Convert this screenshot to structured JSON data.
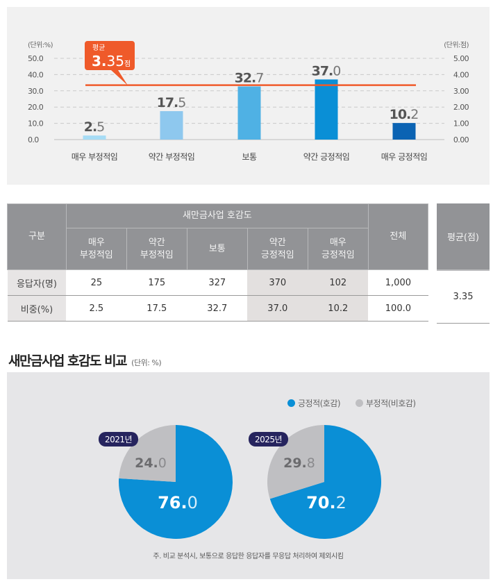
{
  "chart_data": [
    {
      "type": "bar",
      "title": "",
      "categories": [
        "매우 부정적임",
        "약간 부정적임",
        "보통",
        "약간 긍정적임",
        "매우 긍정적임"
      ],
      "values": [
        2.5,
        17.5,
        32.7,
        37.0,
        10.2
      ],
      "value_labels": [
        {
          "int": "2.",
          "dec": "5"
        },
        {
          "int": "17.",
          "dec": "5"
        },
        {
          "int": "32.",
          "dec": "7"
        },
        {
          "int": "37.",
          "dec": "0"
        },
        {
          "int": "10.",
          "dec": "2"
        }
      ],
      "bar_colors": [
        "#a6dcf5",
        "#8ec8ee",
        "#4fb1e4",
        "#0a8fd6",
        "#0b63b3"
      ],
      "left_axis": {
        "unit_label": "(단위:%)",
        "ylim": [
          0,
          50
        ],
        "ticks": [
          "0.0",
          "10.0",
          "20.0",
          "30.0",
          "40.0",
          "50.0"
        ]
      },
      "right_axis": {
        "unit_label": "(단위:점)",
        "ylim": [
          0,
          5
        ],
        "ticks": [
          "0.00",
          "1.00",
          "2.00",
          "3.00",
          "4.00",
          "5.00"
        ]
      },
      "grid": true,
      "average_line": {
        "value": 3.35,
        "axis": "right",
        "color": "#ef5a2a",
        "label_title": "평균",
        "label_int": "3.",
        "label_dec": "35",
        "label_unit": "점"
      }
    },
    {
      "type": "pie",
      "title": "새만금사업 호감도 비교",
      "unit": "(단위: %)",
      "legend": [
        {
          "label": "긍정적(호감)",
          "color": "#0a8fd6"
        },
        {
          "label": "부정적(비호감)",
          "color": "#bfbfc2"
        }
      ],
      "legend_position": "top-right",
      "pies": [
        {
          "year_label": "2021년",
          "slices": [
            {
              "name": "긍정적(호감)",
              "value": 76.0,
              "int": "76.",
              "dec": "0"
            },
            {
              "name": "부정적(비호감)",
              "value": 24.0,
              "int": "24.",
              "dec": "0"
            }
          ]
        },
        {
          "year_label": "2025년",
          "slices": [
            {
              "name": "긍정적(호감)",
              "value": 70.2,
              "int": "70.",
              "dec": "2"
            },
            {
              "name": "부정적(비호감)",
              "value": 29.8,
              "int": "29.",
              "dec": "8"
            }
          ]
        }
      ],
      "footnote": "주. 비교 분석시, 보통으로 응답한 응답자를 무응답 처리하여 제외시킴"
    }
  ],
  "table": {
    "col_group": "구분",
    "group_header": "새만금사업 호감도",
    "sub_headers": [
      [
        "매우",
        "부정적임"
      ],
      [
        "약간",
        "부정적임"
      ],
      [
        "보통"
      ],
      [
        "약간",
        "긍정적임"
      ],
      [
        "매우",
        "긍정적임"
      ]
    ],
    "total_header": "전체",
    "avg_header": "평균(점)",
    "rows": [
      {
        "label": "응답자(명)",
        "values": [
          "25",
          "175",
          "327",
          "370",
          "102"
        ],
        "total": "1,000"
      },
      {
        "label": "비중(%)",
        "values": [
          "2.5",
          "17.5",
          "32.7",
          "37.0",
          "10.2"
        ],
        "total": "100.0"
      }
    ],
    "average": "3.35"
  }
}
